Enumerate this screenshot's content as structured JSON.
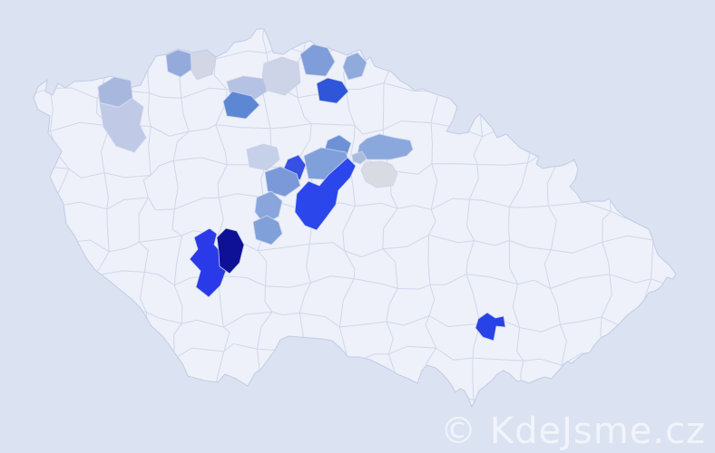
{
  "map": {
    "background_color": "#dbe2f1",
    "land_color": "#eef1f9",
    "border_color": "#ccd4ea",
    "outline_color": "#c2cce6",
    "districts": [
      {
        "id": "region-nw-1",
        "color": "#a7b7dd"
      },
      {
        "id": "region-nw-2",
        "color": "#c0cae6"
      },
      {
        "id": "region-north-1",
        "color": "#93aadb"
      },
      {
        "id": "region-north-2",
        "color": "#d3d6e4"
      },
      {
        "id": "region-north-3",
        "color": "#b6c2e3"
      },
      {
        "id": "region-north-4",
        "color": "#5c88d3"
      },
      {
        "id": "region-north-5",
        "color": "#cdd4e7"
      },
      {
        "id": "region-north-6",
        "color": "#7e9dd9"
      },
      {
        "id": "region-north-7",
        "color": "#90aadc"
      },
      {
        "id": "region-north-8",
        "color": "#2f55d8"
      },
      {
        "id": "region-central-1",
        "color": "#c7d0e9"
      },
      {
        "id": "region-central-2",
        "color": "#3550e2"
      },
      {
        "id": "region-central-3",
        "color": "#6e91d6"
      },
      {
        "id": "region-central-4",
        "color": "#80a0db"
      },
      {
        "id": "region-central-5",
        "color": "#7b99d8"
      },
      {
        "id": "region-central-6",
        "color": "#8aa5dc"
      },
      {
        "id": "region-central-7",
        "color": "#2b46ea"
      },
      {
        "id": "region-east-1",
        "color": "#8ba8dc"
      },
      {
        "id": "region-east-2",
        "color": "#d9dbe3"
      },
      {
        "id": "region-central-8",
        "color": "#a9bce0"
      },
      {
        "id": "region-sw-1",
        "color": "#2b3ae8"
      },
      {
        "id": "region-sw-2",
        "color": "#0e1196"
      },
      {
        "id": "region-sw-3",
        "color": "#7fa0d8"
      },
      {
        "id": "region-se-1",
        "color": "#2742e6"
      }
    ]
  },
  "watermark": {
    "text": "© KdeJsme.cz",
    "color": "#f1f4fa"
  }
}
